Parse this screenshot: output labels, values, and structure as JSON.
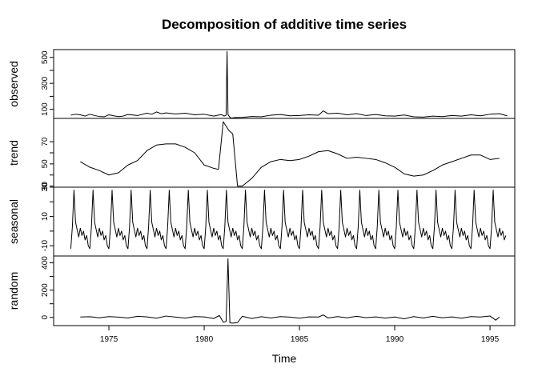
{
  "chart_data": {
    "type": "line",
    "title": "Decomposition of additive time series",
    "xlabel": "Time",
    "x_ticks": [
      1975,
      1980,
      1985,
      1990,
      1995
    ],
    "xlim": [
      1972.1,
      1996.3
    ],
    "panels": [
      {
        "name": "observed",
        "ylabel": "observed",
        "ylim": [
          30,
          560
        ],
        "y_ticks": [
          100,
          300,
          500
        ],
        "y_ticklabels": [
          "100",
          "300",
          "500"
        ],
        "y_minor_ticks": [
          200,
          400
        ],
        "x": [
          1973.0,
          1973.25,
          1973.5,
          1973.75,
          1974.0,
          1974.25,
          1974.5,
          1974.75,
          1975.0,
          1975.25,
          1975.5,
          1975.75,
          1976.0,
          1976.5,
          1977.0,
          1977.25,
          1977.5,
          1977.75,
          1978.0,
          1978.5,
          1979.0,
          1979.5,
          1980.0,
          1980.5,
          1980.9,
          1981.05,
          1981.15,
          1981.2,
          1981.25,
          1981.33,
          1981.42,
          1981.6,
          1982.0,
          1982.5,
          1983.0,
          1983.5,
          1984.0,
          1984.5,
          1985.0,
          1985.5,
          1986.0,
          1986.1,
          1986.25,
          1986.5,
          1987.0,
          1987.5,
          1988.0,
          1988.5,
          1989.0,
          1989.5,
          1990.0,
          1990.5,
          1991.0,
          1991.5,
          1992.0,
          1992.5,
          1993.0,
          1993.5,
          1994.0,
          1994.5,
          1995.0,
          1995.5,
          1995.9
        ],
        "values": [
          55,
          62,
          58,
          48,
          62,
          52,
          45,
          42,
          58,
          50,
          44,
          48,
          60,
          52,
          70,
          62,
          80,
          66,
          72,
          64,
          70,
          58,
          62,
          48,
          60,
          48,
          55,
          545,
          60,
          42,
          32,
          36,
          38,
          45,
          42,
          55,
          60,
          50,
          52,
          58,
          55,
          68,
          88,
          66,
          70,
          58,
          66,
          52,
          60,
          50,
          48,
          56,
          42,
          40,
          48,
          44,
          52,
          48,
          58,
          50,
          62,
          66,
          50
        ]
      },
      {
        "name": "trend",
        "ylabel": "trend",
        "ylim": [
          29,
          91
        ],
        "y_ticks": [
          30,
          50,
          70
        ],
        "y_ticklabels": [
          "30",
          "50",
          "70"
        ],
        "y_minor_ticks": [
          40,
          60
        ],
        "x": [
          1973.5,
          1974.0,
          1974.5,
          1975.0,
          1975.5,
          1976.0,
          1976.5,
          1977.0,
          1977.5,
          1978.0,
          1978.5,
          1979.0,
          1979.5,
          1980.0,
          1980.5,
          1980.75,
          1981.0,
          1981.3,
          1981.5,
          1981.75,
          1982.0,
          1982.5,
          1983.0,
          1983.5,
          1984.0,
          1984.5,
          1985.0,
          1985.5,
          1986.0,
          1986.5,
          1987.0,
          1987.5,
          1988.0,
          1988.5,
          1989.0,
          1989.5,
          1990.0,
          1990.5,
          1991.0,
          1991.5,
          1992.0,
          1992.5,
          1993.0,
          1993.5,
          1994.0,
          1994.5,
          1995.0,
          1995.5
        ],
        "values": [
          52,
          47,
          44,
          40,
          42,
          49,
          53,
          62,
          67,
          68,
          68,
          65,
          60,
          49,
          46,
          45,
          88,
          80,
          77,
          30,
          30,
          37,
          47,
          52,
          54,
          53,
          54,
          57,
          61,
          62,
          59,
          55,
          56,
          55,
          54,
          51,
          47,
          41,
          39,
          40,
          44,
          49,
          52,
          55,
          58,
          58,
          54,
          55
        ]
      },
      {
        "name": "seasonal",
        "ylabel": "seasonal",
        "ylim": [
          -17,
          30
        ],
        "y_ticks": [
          -10,
          10,
          30
        ],
        "y_ticklabels": [
          "-10",
          "10",
          "30"
        ],
        "y_minor_ticks": [
          0,
          20
        ],
        "period_start": 1973.0,
        "period_end": 1995.9,
        "period_pattern": [
          -12,
          3,
          28,
          6,
          1,
          -4,
          2,
          -3,
          0,
          -6,
          -3,
          -10,
          -16
        ]
      },
      {
        "name": "random",
        "ylabel": "random",
        "ylim": [
          -60,
          450
        ],
        "y_ticks": [
          0,
          200,
          400
        ],
        "y_ticklabels": [
          "0",
          "200",
          "400"
        ],
        "y_minor_ticks": [
          100,
          300
        ],
        "x": [
          1973.5,
          1974.0,
          1974.5,
          1975.0,
          1975.5,
          1976.0,
          1976.5,
          1977.0,
          1977.5,
          1978.0,
          1978.5,
          1979.0,
          1979.5,
          1980.0,
          1980.5,
          1980.8,
          1981.0,
          1981.15,
          1981.25,
          1981.35,
          1981.5,
          1981.75,
          1982.0,
          1982.5,
          1983.0,
          1983.5,
          1984.0,
          1984.5,
          1985.0,
          1985.5,
          1986.0,
          1986.25,
          1986.5,
          1987.0,
          1987.5,
          1988.0,
          1988.5,
          1989.0,
          1989.5,
          1990.0,
          1990.5,
          1991.0,
          1991.5,
          1992.0,
          1992.5,
          1993.0,
          1993.5,
          1994.0,
          1994.5,
          1995.0,
          1995.3,
          1995.5
        ],
        "values": [
          3,
          5,
          -3,
          6,
          2,
          -4,
          8,
          4,
          -6,
          10,
          2,
          -5,
          6,
          4,
          -8,
          14,
          -35,
          -30,
          430,
          -40,
          -42,
          -38,
          8,
          -8,
          5,
          -4,
          6,
          2,
          -6,
          4,
          3,
          18,
          -4,
          6,
          -3,
          8,
          -2,
          4,
          -5,
          3,
          -10,
          6,
          -4,
          8,
          -3,
          4,
          -6,
          6,
          3,
          10,
          -20,
          3
        ]
      }
    ]
  }
}
